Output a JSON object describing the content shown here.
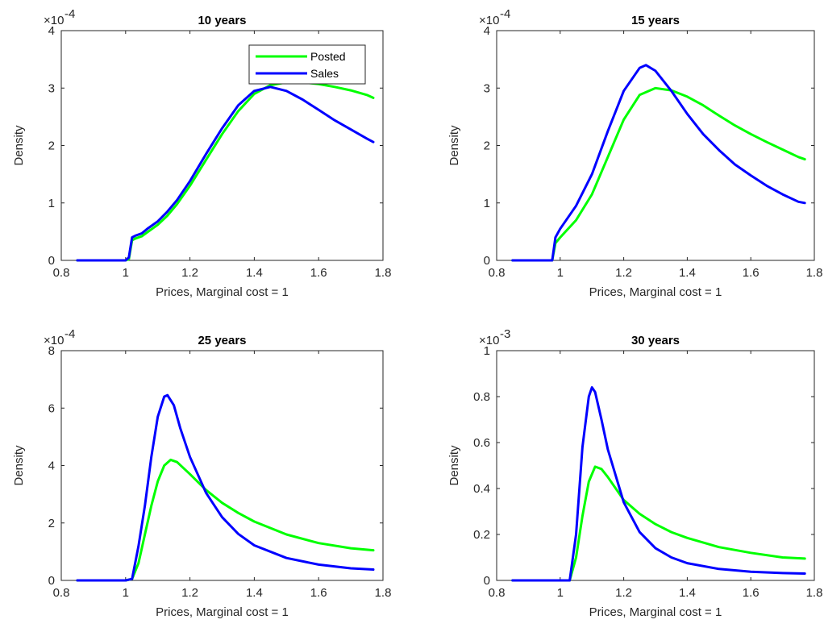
{
  "chart_data": [
    {
      "type": "line",
      "title": "10 years",
      "xlabel": "Prices, Marginal cost = 1",
      "ylabel": "Density",
      "exponent_label": "×10",
      "exponent_power": "-4",
      "xlim": [
        0.8,
        1.8
      ],
      "ylim": [
        0,
        4
      ],
      "xticks": [
        "0.8",
        "1",
        "1.2",
        "1.4",
        "1.6",
        "1.8"
      ],
      "yticks": [
        "0",
        "1",
        "2",
        "3",
        "4"
      ],
      "legend": {
        "position": "top-right",
        "entries": [
          "Posted",
          "Sales"
        ]
      },
      "series": [
        {
          "name": "Posted",
          "color": "#00ff00",
          "x": [
            0.85,
            0.9,
            0.95,
            1.0,
            1.01,
            1.02,
            1.03,
            1.05,
            1.07,
            1.1,
            1.13,
            1.16,
            1.2,
            1.25,
            1.3,
            1.35,
            1.4,
            1.45,
            1.5,
            1.55,
            1.6,
            1.65,
            1.7,
            1.75,
            1.77
          ],
          "y": [
            0,
            0,
            0,
            0,
            0.02,
            0.35,
            0.38,
            0.42,
            0.5,
            0.62,
            0.78,
            0.98,
            1.3,
            1.75,
            2.2,
            2.6,
            2.9,
            3.05,
            3.1,
            3.1,
            3.07,
            3.02,
            2.96,
            2.88,
            2.83
          ]
        },
        {
          "name": "Sales",
          "color": "#0000ff",
          "x": [
            0.85,
            0.9,
            0.95,
            1.0,
            1.01,
            1.02,
            1.03,
            1.05,
            1.07,
            1.1,
            1.13,
            1.16,
            1.2,
            1.25,
            1.3,
            1.35,
            1.4,
            1.45,
            1.5,
            1.55,
            1.6,
            1.65,
            1.7,
            1.75,
            1.77
          ],
          "y": [
            0,
            0,
            0,
            0,
            0.05,
            0.4,
            0.43,
            0.47,
            0.56,
            0.68,
            0.85,
            1.05,
            1.38,
            1.85,
            2.3,
            2.7,
            2.95,
            3.02,
            2.95,
            2.8,
            2.62,
            2.44,
            2.28,
            2.12,
            2.06
          ]
        }
      ]
    },
    {
      "type": "line",
      "title": "15 years",
      "xlabel": "Prices, Marginal cost = 1",
      "ylabel": "Density",
      "exponent_label": "×10",
      "exponent_power": "-4",
      "xlim": [
        0.8,
        1.8
      ],
      "ylim": [
        0,
        4
      ],
      "xticks": [
        "0.8",
        "1",
        "1.2",
        "1.4",
        "1.6",
        "1.8"
      ],
      "yticks": [
        "0",
        "1",
        "2",
        "3",
        "4"
      ],
      "series": [
        {
          "name": "Posted",
          "color": "#00ff00",
          "x": [
            0.85,
            0.9,
            0.95,
            0.975,
            0.985,
            1.0,
            1.05,
            1.1,
            1.15,
            1.2,
            1.25,
            1.3,
            1.35,
            1.4,
            1.45,
            1.5,
            1.55,
            1.6,
            1.65,
            1.7,
            1.75,
            1.77
          ],
          "y": [
            0,
            0,
            0,
            0,
            0.3,
            0.4,
            0.7,
            1.15,
            1.8,
            2.45,
            2.88,
            3.0,
            2.96,
            2.85,
            2.7,
            2.52,
            2.35,
            2.2,
            2.06,
            1.93,
            1.8,
            1.76
          ]
        },
        {
          "name": "Sales",
          "color": "#0000ff",
          "x": [
            0.85,
            0.9,
            0.95,
            0.975,
            0.985,
            1.0,
            1.05,
            1.1,
            1.15,
            1.2,
            1.25,
            1.27,
            1.3,
            1.35,
            1.4,
            1.45,
            1.5,
            1.55,
            1.6,
            1.65,
            1.7,
            1.75,
            1.77
          ],
          "y": [
            0,
            0,
            0,
            0,
            0.4,
            0.55,
            0.95,
            1.5,
            2.25,
            2.95,
            3.35,
            3.4,
            3.3,
            2.95,
            2.55,
            2.2,
            1.92,
            1.67,
            1.48,
            1.3,
            1.15,
            1.02,
            1.0
          ]
        }
      ]
    },
    {
      "type": "line",
      "title": "25 years",
      "xlabel": "Prices, Marginal cost = 1",
      "ylabel": "Density",
      "exponent_label": "×10",
      "exponent_power": "-4",
      "xlim": [
        0.8,
        1.8
      ],
      "ylim": [
        0,
        8
      ],
      "xticks": [
        "0.8",
        "1",
        "1.2",
        "1.4",
        "1.6",
        "1.8"
      ],
      "yticks": [
        "0",
        "2",
        "4",
        "6",
        "8"
      ],
      "series": [
        {
          "name": "Posted",
          "color": "#00ff00",
          "x": [
            0.85,
            0.9,
            0.95,
            1.0,
            1.02,
            1.04,
            1.06,
            1.08,
            1.1,
            1.12,
            1.14,
            1.16,
            1.2,
            1.25,
            1.3,
            1.35,
            1.4,
            1.5,
            1.6,
            1.7,
            1.77
          ],
          "y": [
            0,
            0,
            0,
            0,
            0.05,
            0.6,
            1.6,
            2.6,
            3.45,
            4.0,
            4.2,
            4.12,
            3.7,
            3.15,
            2.7,
            2.35,
            2.05,
            1.6,
            1.3,
            1.12,
            1.05
          ]
        },
        {
          "name": "Sales",
          "color": "#0000ff",
          "x": [
            0.85,
            0.9,
            0.95,
            1.0,
            1.02,
            1.04,
            1.06,
            1.08,
            1.1,
            1.12,
            1.13,
            1.15,
            1.17,
            1.2,
            1.25,
            1.3,
            1.35,
            1.4,
            1.5,
            1.6,
            1.7,
            1.77
          ],
          "y": [
            0,
            0,
            0,
            0,
            0.05,
            1.2,
            2.6,
            4.3,
            5.7,
            6.4,
            6.45,
            6.1,
            5.3,
            4.3,
            3.05,
            2.2,
            1.62,
            1.22,
            0.78,
            0.55,
            0.42,
            0.38
          ]
        }
      ]
    },
    {
      "type": "line",
      "title": "30 years",
      "xlabel": "Prices, Marginal cost = 1",
      "ylabel": "Density",
      "exponent_label": "×10",
      "exponent_power": "-3",
      "xlim": [
        0.8,
        1.8
      ],
      "ylim": [
        0,
        1
      ],
      "xticks": [
        "0.8",
        "1",
        "1.2",
        "1.4",
        "1.6",
        "1.8"
      ],
      "yticks": [
        "0",
        "0.2",
        "0.4",
        "0.6",
        "0.8",
        "1"
      ],
      "series": [
        {
          "name": "Posted",
          "color": "#00ff00",
          "x": [
            0.85,
            0.9,
            0.95,
            1.0,
            1.03,
            1.05,
            1.07,
            1.09,
            1.11,
            1.13,
            1.15,
            1.2,
            1.25,
            1.3,
            1.35,
            1.4,
            1.5,
            1.6,
            1.7,
            1.77
          ],
          "y": [
            0,
            0,
            0,
            0,
            0,
            0.1,
            0.28,
            0.43,
            0.495,
            0.485,
            0.45,
            0.35,
            0.29,
            0.245,
            0.21,
            0.185,
            0.145,
            0.12,
            0.1,
            0.095
          ]
        },
        {
          "name": "Sales",
          "color": "#0000ff",
          "x": [
            0.85,
            0.9,
            0.95,
            1.0,
            1.03,
            1.05,
            1.07,
            1.09,
            1.1,
            1.11,
            1.13,
            1.15,
            1.2,
            1.25,
            1.3,
            1.35,
            1.4,
            1.5,
            1.6,
            1.7,
            1.77
          ],
          "y": [
            0,
            0,
            0,
            0,
            0,
            0.2,
            0.58,
            0.8,
            0.84,
            0.82,
            0.7,
            0.57,
            0.34,
            0.21,
            0.14,
            0.1,
            0.075,
            0.05,
            0.038,
            0.032,
            0.03
          ]
        }
      ]
    }
  ]
}
